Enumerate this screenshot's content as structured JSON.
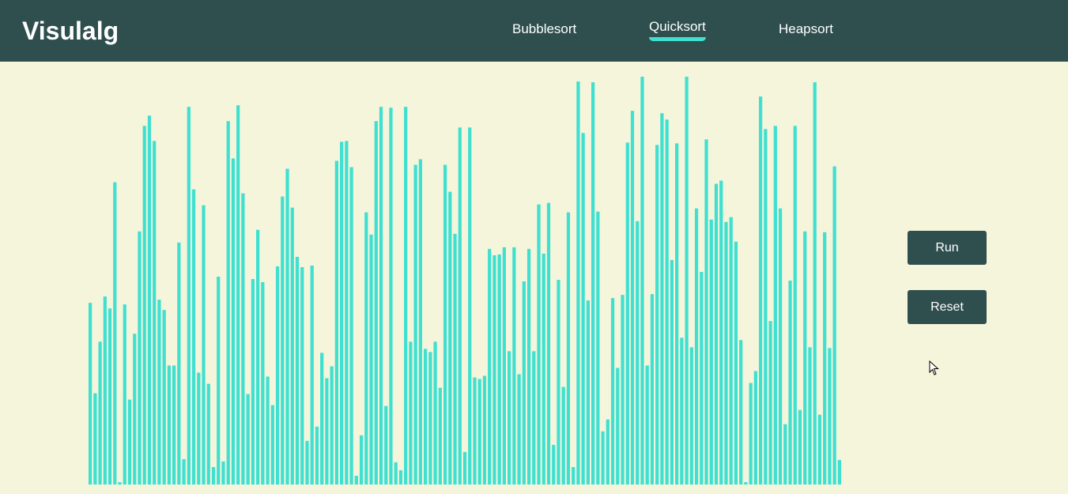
{
  "app": {
    "logo": "Visulalg"
  },
  "nav": {
    "items": [
      {
        "label": "Bubblesort",
        "active": false
      },
      {
        "label": "Quicksort",
        "active": true
      },
      {
        "label": "Heapsort",
        "active": false
      }
    ]
  },
  "controls": {
    "run_label": "Run",
    "reset_label": "Reset"
  },
  "colors": {
    "header": "#2f4f4f",
    "background": "#f5f5dc",
    "bar": "#40e0d0",
    "button": "#2f4f4f"
  },
  "bars": {
    "values": [
      229,
      115,
      180,
      237,
      222,
      381,
      3,
      227,
      107,
      190,
      319,
      452,
      465,
      433,
      233,
      220,
      150,
      150,
      305,
      32,
      476,
      372,
      141,
      352,
      127,
      22,
      262,
      29,
      458,
      411,
      478,
      367,
      114,
      259,
      321,
      255,
      136,
      100,
      275,
      363,
      398,
      349,
      287,
      274,
      55,
      276,
      73,
      166,
      134,
      149,
      408,
      432,
      433,
      400,
      11,
      62,
      343,
      315,
      458,
      476,
      99,
      475,
      28,
      18,
      476,
      180,
      403,
      410,
      171,
      167,
      180,
      122,
      403,
      369,
      316,
      450,
      41,
      450,
      135,
      133,
      137,
      297,
      289,
      290,
      299,
      168,
      299,
      139,
      256,
      297,
      168,
      353,
      291,
      355,
      50,
      258,
      123,
      343,
      22,
      508,
      443,
      232,
      507,
      344,
      67,
      82,
      235,
      147,
      239,
      431,
      471,
      332,
      514,
      150,
      240,
      428,
      468,
      460,
      283,
      430,
      185,
      514,
      173,
      348,
      268,
      435,
      334,
      379,
      383,
      331,
      337,
      306,
      182,
      3,
      128,
      143,
      489,
      448,
      206,
      452,
      348,
      76,
      257,
      452,
      94,
      319,
      173,
      507,
      88,
      318,
      172,
      401,
      31
    ],
    "max": 525
  }
}
